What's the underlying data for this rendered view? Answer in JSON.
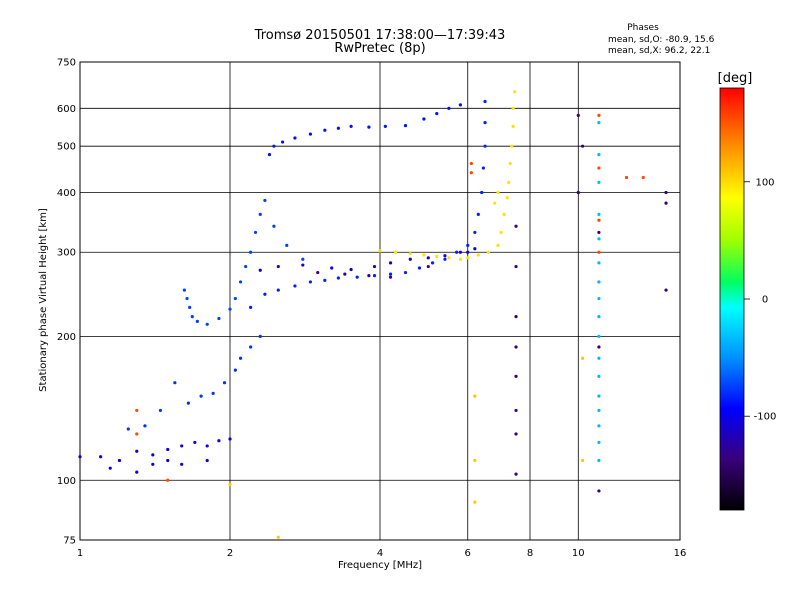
{
  "chart_data": {
    "type": "scatter",
    "title": "Tromsø 20150501 17:38:00—17:39:43",
    "subtitle": "RwPretec (8p)",
    "phases": {
      "heading": "Phases",
      "line_o": "mean, sd,O: -80.9, 15.6",
      "line_x": "mean, sd,X:  96.2, 22.1"
    },
    "xlabel": "Frequency [MHz]",
    "ylabel": "Stationary phase Virtual Height [km]",
    "x_scale": "log",
    "y_scale": "log",
    "xlim": [
      1,
      16
    ],
    "ylim": [
      75,
      750
    ],
    "x_ticks": [
      1,
      2,
      4,
      6,
      8,
      10,
      16
    ],
    "x_tick_labels": [
      "1",
      "2",
      "4",
      "6",
      "8",
      "10",
      "16"
    ],
    "y_ticks": [
      75,
      100,
      200,
      300,
      400,
      500,
      600,
      750
    ],
    "y_tick_labels": [
      "75",
      "100",
      "200",
      "300",
      "400",
      "500",
      "600",
      "750"
    ],
    "grid": true,
    "colorbar": {
      "label": "[deg]",
      "range": [
        -180,
        180
      ],
      "ticks": [
        100,
        0,
        -100
      ],
      "tick_labels": [
        "100",
        "0",
        "-100"
      ]
    },
    "series": [
      {
        "phase": -110,
        "points": [
          [
            1.0,
            112
          ],
          [
            1.1,
            112
          ],
          [
            1.2,
            110
          ],
          [
            1.3,
            115
          ],
          [
            1.4,
            113
          ],
          [
            1.5,
            116
          ],
          [
            1.6,
            118
          ],
          [
            1.7,
            120
          ],
          [
            1.8,
            118
          ],
          [
            1.9,
            121
          ],
          [
            2.0,
            122
          ],
          [
            1.15,
            106
          ],
          [
            1.3,
            104
          ],
          [
            1.4,
            108
          ],
          [
            1.5,
            110
          ],
          [
            1.6,
            108
          ],
          [
            1.8,
            110
          ]
        ]
      },
      {
        "phase": -85,
        "points": [
          [
            1.25,
            128
          ],
          [
            1.35,
            130
          ],
          [
            1.45,
            140
          ],
          [
            1.55,
            160
          ],
          [
            1.65,
            145
          ],
          [
            1.75,
            150
          ],
          [
            1.85,
            152
          ],
          [
            1.95,
            160
          ],
          [
            2.05,
            170
          ],
          [
            2.1,
            180
          ],
          [
            2.2,
            190
          ],
          [
            2.3,
            200
          ]
        ]
      },
      {
        "phase": -80,
        "points": [
          [
            1.62,
            250
          ],
          [
            1.64,
            240
          ],
          [
            1.66,
            230
          ],
          [
            1.68,
            220
          ],
          [
            1.72,
            215
          ],
          [
            1.8,
            212
          ],
          [
            1.9,
            218
          ],
          [
            2.0,
            228
          ],
          [
            2.05,
            240
          ],
          [
            2.1,
            260
          ],
          [
            2.15,
            280
          ],
          [
            2.2,
            300
          ],
          [
            2.25,
            330
          ],
          [
            2.3,
            360
          ],
          [
            2.35,
            385
          ],
          [
            2.45,
            340
          ],
          [
            2.6,
            310
          ],
          [
            2.8,
            290
          ]
        ]
      },
      {
        "phase": -90,
        "points": [
          [
            2.2,
            230
          ],
          [
            2.35,
            245
          ],
          [
            2.5,
            250
          ],
          [
            2.7,
            255
          ],
          [
            2.9,
            260
          ],
          [
            3.1,
            262
          ],
          [
            3.3,
            265
          ],
          [
            3.6,
            266
          ],
          [
            3.9,
            268
          ],
          [
            4.2,
            270
          ],
          [
            4.5,
            272
          ],
          [
            4.8,
            278
          ],
          [
            5.1,
            285
          ],
          [
            5.4,
            290
          ],
          [
            5.7,
            300
          ],
          [
            6.0,
            310
          ],
          [
            6.2,
            330
          ],
          [
            6.3,
            360
          ],
          [
            6.4,
            400
          ],
          [
            6.45,
            450
          ],
          [
            6.5,
            500
          ],
          [
            6.5,
            560
          ],
          [
            6.5,
            620
          ]
        ]
      },
      {
        "phase": -115,
        "points": [
          [
            2.3,
            275
          ],
          [
            2.5,
            280
          ],
          [
            2.8,
            282
          ],
          [
            3.2,
            278
          ],
          [
            3.5,
            276
          ],
          [
            3.9,
            280
          ],
          [
            4.2,
            285
          ],
          [
            4.6,
            290
          ],
          [
            5.0,
            292
          ],
          [
            5.4,
            295
          ],
          [
            5.8,
            300
          ],
          [
            6.0,
            300
          ],
          [
            6.2,
            305
          ]
        ]
      },
      {
        "phase": -95,
        "points": [
          [
            2.4,
            480
          ],
          [
            2.45,
            500
          ],
          [
            2.55,
            510
          ],
          [
            2.7,
            520
          ],
          [
            2.9,
            530
          ],
          [
            3.1,
            540
          ],
          [
            3.3,
            545
          ],
          [
            3.5,
            550
          ],
          [
            3.8,
            548
          ],
          [
            4.1,
            550
          ],
          [
            4.5,
            552
          ],
          [
            4.9,
            570
          ],
          [
            5.2,
            585
          ],
          [
            5.5,
            600
          ],
          [
            5.8,
            610
          ]
        ]
      },
      {
        "phase": 110,
        "points": [
          [
            4.0,
            302
          ],
          [
            4.3,
            300
          ],
          [
            4.6,
            298
          ],
          [
            4.9,
            296
          ],
          [
            5.2,
            294
          ],
          [
            5.5,
            292
          ],
          [
            5.8,
            290
          ],
          [
            6.0,
            292
          ],
          [
            6.3,
            296
          ],
          [
            6.6,
            300
          ],
          [
            6.9,
            310
          ],
          [
            7.0,
            330
          ],
          [
            7.1,
            360
          ],
          [
            7.2,
            390
          ],
          [
            7.25,
            420
          ],
          [
            7.3,
            460
          ],
          [
            7.35,
            500
          ],
          [
            7.4,
            550
          ],
          [
            7.4,
            600
          ],
          [
            7.45,
            650
          ],
          [
            6.8,
            380
          ],
          [
            6.9,
            400
          ]
        ]
      },
      {
        "phase": -140,
        "points": [
          [
            3.0,
            272
          ],
          [
            3.4,
            270
          ],
          [
            3.8,
            268
          ],
          [
            4.2,
            266
          ],
          [
            5.0,
            280
          ],
          [
            7.5,
            340
          ],
          [
            7.5,
            280
          ],
          [
            7.5,
            220
          ],
          [
            7.5,
            190
          ],
          [
            7.5,
            165
          ],
          [
            7.5,
            140
          ],
          [
            7.5,
            125
          ],
          [
            7.5,
            103
          ]
        ]
      },
      {
        "phase": 160,
        "points": [
          [
            1.3,
            140
          ],
          [
            1.3,
            125
          ],
          [
            1.5,
            100
          ],
          [
            6.1,
            440
          ],
          [
            6.1,
            460
          ],
          [
            11.0,
            580
          ],
          [
            11.0,
            450
          ],
          [
            11.0,
            350
          ],
          [
            11.0,
            300
          ],
          [
            11.0,
            260
          ],
          [
            13.5,
            430
          ],
          [
            12.5,
            430
          ]
        ]
      },
      {
        "phase": -40,
        "points": [
          [
            11.0,
            560
          ],
          [
            11.0,
            480
          ],
          [
            11.0,
            420
          ],
          [
            11.0,
            360
          ],
          [
            11.0,
            320
          ],
          [
            11.0,
            285
          ],
          [
            11.0,
            260
          ],
          [
            11.0,
            240
          ],
          [
            11.0,
            220
          ],
          [
            11.0,
            200
          ],
          [
            11.0,
            180
          ],
          [
            11.0,
            165
          ],
          [
            11.0,
            150
          ],
          [
            11.0,
            140
          ],
          [
            11.0,
            130
          ],
          [
            11.0,
            120
          ],
          [
            11.0,
            110
          ]
        ]
      },
      {
        "phase": -140,
        "points": [
          [
            10.0,
            580
          ],
          [
            10.2,
            500
          ],
          [
            10.0,
            400
          ],
          [
            11.0,
            330
          ],
          [
            11.0,
            190
          ],
          [
            11.0,
            95
          ],
          [
            15.0,
            400
          ],
          [
            15.0,
            380
          ],
          [
            15.0,
            250
          ]
        ]
      },
      {
        "phase": 120,
        "points": [
          [
            2.5,
            76
          ],
          [
            2.0,
            98
          ],
          [
            6.2,
            90
          ],
          [
            6.2,
            110
          ],
          [
            6.2,
            150
          ],
          [
            10.2,
            110
          ],
          [
            10.2,
            180
          ]
        ]
      }
    ]
  }
}
